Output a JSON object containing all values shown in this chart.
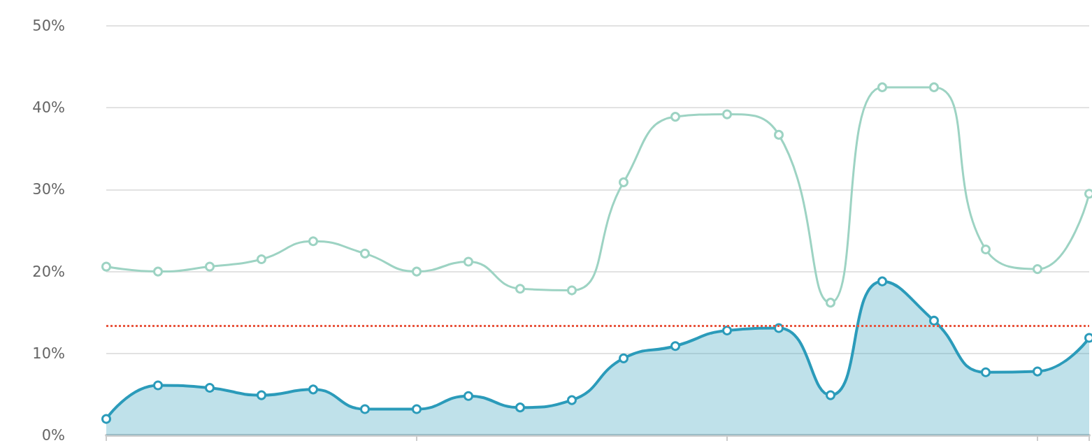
{
  "chart_data": {
    "type": "line",
    "categories": [
      null,
      null,
      null,
      null,
      null,
      null,
      null,
      null,
      null,
      null,
      null,
      null,
      null,
      null,
      null,
      null,
      null,
      null,
      null,
      null
    ],
    "series": [
      {
        "color": "#9dd3c3",
        "values": [
          20.6,
          20.0,
          20.6,
          21.5,
          23.7,
          22.2,
          20.0,
          21.2,
          17.9,
          17.7,
          30.9,
          38.9,
          39.2,
          36.7,
          16.2,
          42.5,
          42.5,
          22.7,
          20.3,
          29.5
        ]
      },
      {
        "type": "area",
        "color": "#2b9bba",
        "values": [
          2.0,
          6.1,
          5.8,
          4.9,
          5.6,
          3.2,
          3.2,
          4.8,
          3.4,
          4.3,
          9.4,
          10.9,
          12.8,
          13.1,
          4.9,
          18.8,
          14.0,
          7.7,
          7.8,
          11.9
        ]
      }
    ],
    "ylim": [
      0,
      50
    ],
    "yticks": [
      {
        "value": 0,
        "label": "0%"
      },
      {
        "value": 10,
        "label": "10%"
      },
      {
        "value": 20,
        "label": "20%"
      },
      {
        "value": 30,
        "label": "30%"
      },
      {
        "value": 40,
        "label": "40%"
      },
      {
        "value": 50,
        "label": "50%"
      }
    ],
    "ref_lines": [
      {
        "axis": "y",
        "value": 13.4,
        "color": "#e8553e",
        "line_style": "dotted"
      }
    ],
    "grid": "y",
    "marker": "circle",
    "tick_labels": "y"
  }
}
